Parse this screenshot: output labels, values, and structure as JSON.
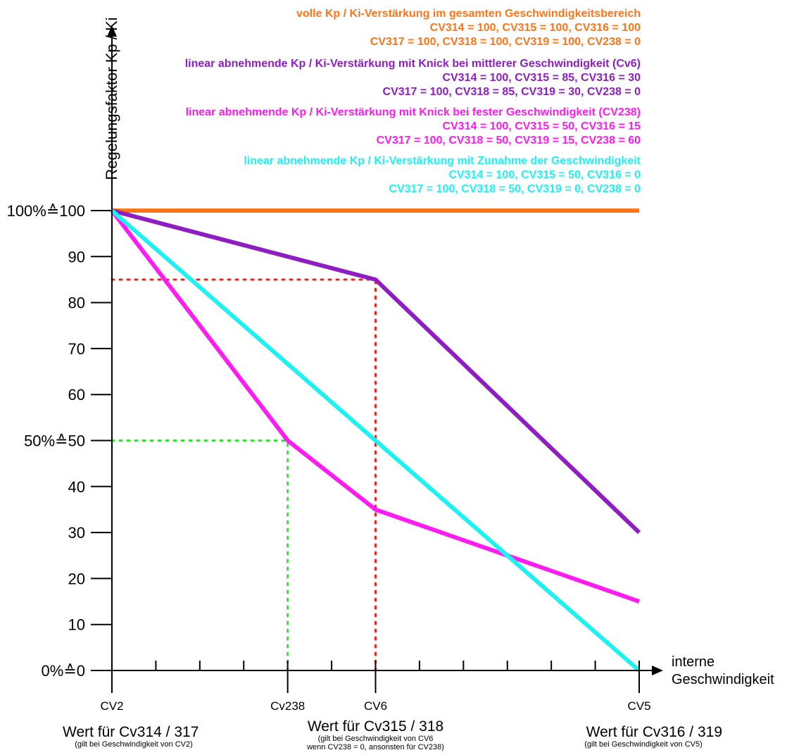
{
  "chart_data": {
    "type": "line",
    "ylabel": "Regelungsfaktor Kp / Ki",
    "xlabel": [
      "interne",
      "Geschwindigkeit"
    ],
    "ylim": [
      0,
      100
    ],
    "y_ticks": [
      {
        "v": 0,
        "label": "0%≙0"
      },
      {
        "v": 10,
        "label": "10"
      },
      {
        "v": 20,
        "label": "20"
      },
      {
        "v": 30,
        "label": "30"
      },
      {
        "v": 40,
        "label": "40"
      },
      {
        "v": 50,
        "label": "50%≙50"
      },
      {
        "v": 60,
        "label": "60"
      },
      {
        "v": 70,
        "label": "70"
      },
      {
        "v": 80,
        "label": "80"
      },
      {
        "v": 90,
        "label": "90"
      },
      {
        "v": 100,
        "label": "100%≙100"
      }
    ],
    "xlim": [
      0,
      12
    ],
    "x_minor_ticks": [
      0,
      1,
      2,
      3,
      4,
      5,
      6,
      7,
      8,
      9,
      10,
      11,
      12
    ],
    "x_ticks": [
      {
        "x": 0,
        "label": "CV2"
      },
      {
        "x": 4,
        "label": "Cv238"
      },
      {
        "x": 6,
        "label": "CV6"
      },
      {
        "x": 12,
        "label": "CV5"
      }
    ],
    "x_bottom_labels": [
      {
        "x": 0,
        "title": "Wert für Cv314 / 317",
        "notes": [
          "(gilt bei Geschwindigkeit von CV2)"
        ]
      },
      {
        "x": 6,
        "title": "Wert für Cv315 / 318",
        "notes": [
          "(gilt bei Geschwindigkeit von CV6",
          "wenn CV238 = 0, ansonsten für CV238)"
        ]
      },
      {
        "x": 12,
        "title": "Wert für Cv316 / 319",
        "notes": [
          "(gilt bei Geschwindigkeit von CV5)"
        ]
      }
    ],
    "series": [
      {
        "x": [
          0,
          12
        ],
        "y": [
          100,
          100
        ],
        "color": "#ff7519"
      },
      {
        "x": [
          0,
          6,
          12
        ],
        "y": [
          100,
          85,
          30
        ],
        "color": "#8e1ec2"
      },
      {
        "x": [
          0,
          4,
          6,
          12
        ],
        "y": [
          100,
          50,
          35,
          15
        ],
        "color": "#ff1cf0"
      },
      {
        "x": [
          0,
          12
        ],
        "y": [
          100,
          0
        ],
        "color": "#1ff1f1"
      }
    ],
    "guides": [
      {
        "x0": 0,
        "y0": 85,
        "x1": 6,
        "y1": 85,
        "color": "#e8241e"
      },
      {
        "x0": 6,
        "y0": 0,
        "x1": 6,
        "y1": 85,
        "color": "#e8241e"
      },
      {
        "x0": 0,
        "y0": 50,
        "x1": 4,
        "y1": 50,
        "color": "#2ee62e"
      },
      {
        "x0": 4,
        "y0": 0,
        "x1": 4,
        "y1": 50,
        "color": "#2ee62e"
      }
    ],
    "annotations": [
      {
        "color": "#ff7519",
        "lines": [
          "volle Kp / Ki-Verstärkung im gesamten Geschwindigkeitsbereich",
          "CV314 = 100, CV315 = 100, CV316 = 100",
          "CV317 = 100, CV318 = 100, CV319 = 100, CV238 = 0"
        ]
      },
      {
        "color": "#8e1ec2",
        "lines": [
          "linear abnehmende Kp / Ki-Verstärkung mit Knick bei mittlerer Geschwindigkeit (Cv6)",
          "CV314 = 100, CV315 = 85, CV316 = 30",
          "CV317 = 100, CV318 = 85, CV319 = 30, CV238 = 0"
        ]
      },
      {
        "color": "#ff1cf0",
        "lines": [
          "linear abnehmende Kp / Ki-Verstärkung mit Knick bei fester Geschwindigkeit (CV238)",
          "CV314 = 100, CV315 = 50, CV316 = 15",
          "CV317 = 100, CV318 = 50, CV319 = 15, CV238 = 60"
        ]
      },
      {
        "color": "#1ff1f1",
        "lines": [
          "linear abnehmende Kp / Ki-Verstärkung mit Zunahme der Geschwindigkeit",
          "CV314 = 100, CV315 = 50, CV316 = 0",
          "CV317 = 100, CV318 = 50, CV319 = 0, CV238 = 0"
        ]
      }
    ]
  }
}
